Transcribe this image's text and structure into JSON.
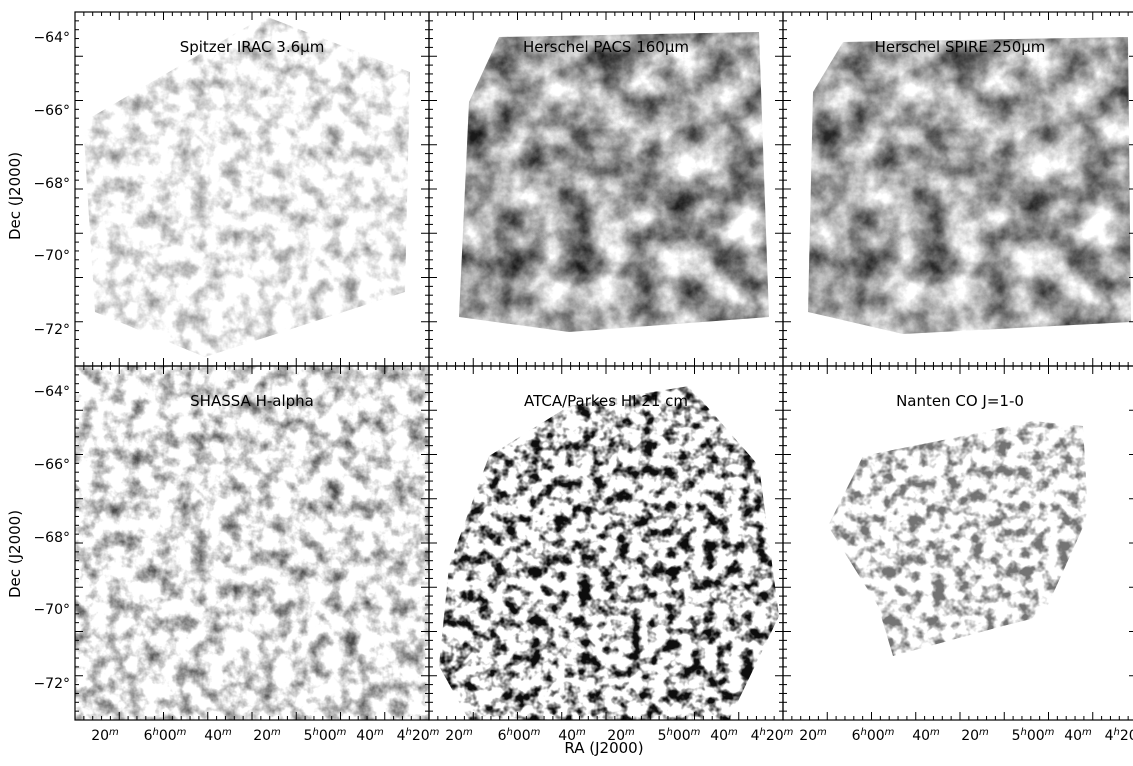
{
  "panels": [
    {
      "title": "Spitzer IRAC 3.6μm"
    },
    {
      "title": "Herschel PACS 160μm"
    },
    {
      "title": "Herschel SPIRE 250μm"
    },
    {
      "title": "SHASSA H-alpha"
    },
    {
      "title": "ATCA/Parkes HI 21 cm"
    },
    {
      "title": "Nanten CO J=1-0"
    }
  ],
  "y_axis": {
    "label": "Dec (J2000)",
    "ticks": [
      "−64°",
      "−66°",
      "−68°",
      "−70°",
      "−72°"
    ]
  },
  "x_axis": {
    "label": "RA (J2000)",
    "ticks": [
      "20m",
      "6h00m",
      "40m",
      "20m",
      "5h00m",
      "40m",
      "4h20m"
    ]
  }
}
